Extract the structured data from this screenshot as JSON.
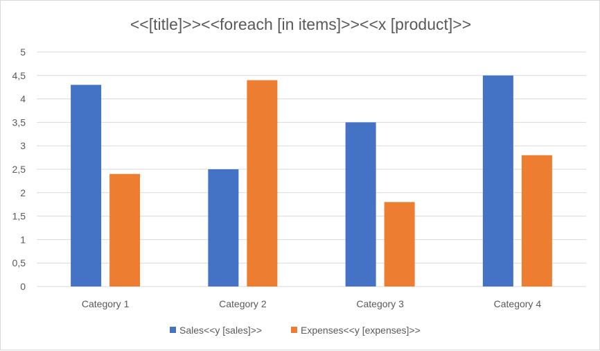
{
  "chart_data": {
    "type": "bar",
    "title": "<<[title]>><<foreach [in items]>><<x [product]>>",
    "categories": [
      "Category 1",
      "Category 2",
      "Category 3",
      "Category 4"
    ],
    "series": [
      {
        "name": "Sales<<y [sales]>>",
        "values": [
          4.3,
          2.5,
          3.5,
          4.5
        ],
        "color": "#4472c4"
      },
      {
        "name": "Expenses<<y [expenses]>>",
        "values": [
          2.4,
          4.4,
          1.8,
          2.8
        ],
        "color": "#ed7d31"
      }
    ],
    "ylim": [
      0,
      5
    ],
    "yticks": [
      "0",
      "0,5",
      "1",
      "1,5",
      "2",
      "2,5",
      "3",
      "3,5",
      "4",
      "4,5",
      "5"
    ],
    "grid": true,
    "legend_position": "bottom"
  }
}
